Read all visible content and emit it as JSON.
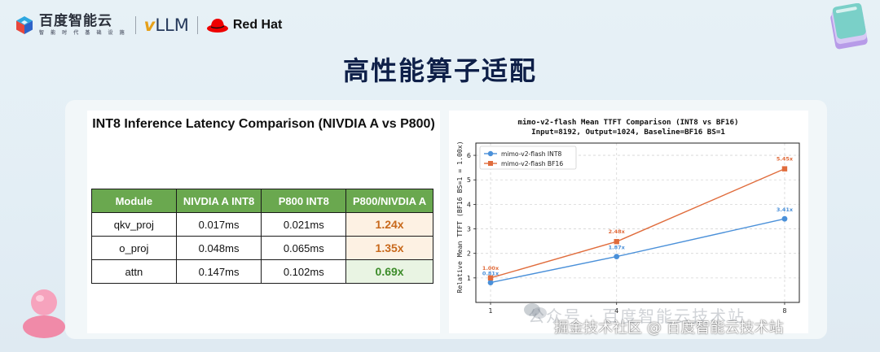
{
  "header": {
    "baidu_name": "百度智能云",
    "baidu_tagline": "智 能 时 代 基 础 设 施",
    "vllm_v": "v",
    "vllm_rest": "LLM",
    "redhat": "Red Hat"
  },
  "slide_title": "高性能算子适配",
  "left_card": {
    "title": "INT8 Inference Latency Comparison (NIVDIA A vs P800)",
    "columns": [
      "Module",
      "NIVDIA A INT8",
      "P800 INT8",
      "P800/NIVDIA A"
    ],
    "rows": [
      {
        "module": "qkv_proj",
        "nvidia": "0.017ms",
        "p800": "0.021ms",
        "ratio": "1.24x"
      },
      {
        "module": "o_proj",
        "nvidia": "0.048ms",
        "p800": "0.065ms",
        "ratio": "1.35x"
      },
      {
        "module": "attn",
        "nvidia": "0.147ms",
        "p800": "0.102ms",
        "ratio": "0.69x"
      }
    ]
  },
  "chart_data": {
    "type": "line",
    "title_line1": "mimo-v2-flash Mean TTFT Comparison (INT8 vs BF16)",
    "title_line2": "Input=8192, Output=1024, Baseline=BF16 BS=1",
    "ylabel": "Relative Mean TTFT (BF16 BS=1 = 1.00x)",
    "xlabel": "",
    "x": [
      1,
      4,
      8
    ],
    "x_tick_labels": [
      "1",
      "4",
      "8"
    ],
    "xlim": [
      0.65,
      8.35
    ],
    "ylim": [
      0,
      6.5
    ],
    "y_ticks": [
      1,
      2,
      3,
      4,
      5,
      6
    ],
    "y_tick_labels": [
      "1",
      "2",
      "3",
      "4",
      "5",
      "6"
    ],
    "grid": true,
    "legend_position": "top-left",
    "series": [
      {
        "name": "mimo-v2-flash INT8",
        "values": [
          0.81,
          1.87,
          3.41
        ],
        "labels": [
          "0.81x",
          "1.87x",
          "3.41x"
        ],
        "color": "#4a90d9",
        "marker": "circle"
      },
      {
        "name": "mimo-v2-flash BF16",
        "values": [
          1.0,
          2.48,
          5.45
        ],
        "labels": [
          "1.00x",
          "2.48x",
          "5.45x"
        ],
        "color": "#e06c3c",
        "marker": "square"
      }
    ]
  },
  "watermark": {
    "faded": "公众号 · 百度智能云技术站",
    "text": "掘金技术社区 @ 百度智能云技术站"
  },
  "colors": {
    "table_header": "#6aa84f",
    "ratio_slower": "#c8691c",
    "ratio_faster": "#3d8c2a",
    "title": "#0e1f48"
  }
}
